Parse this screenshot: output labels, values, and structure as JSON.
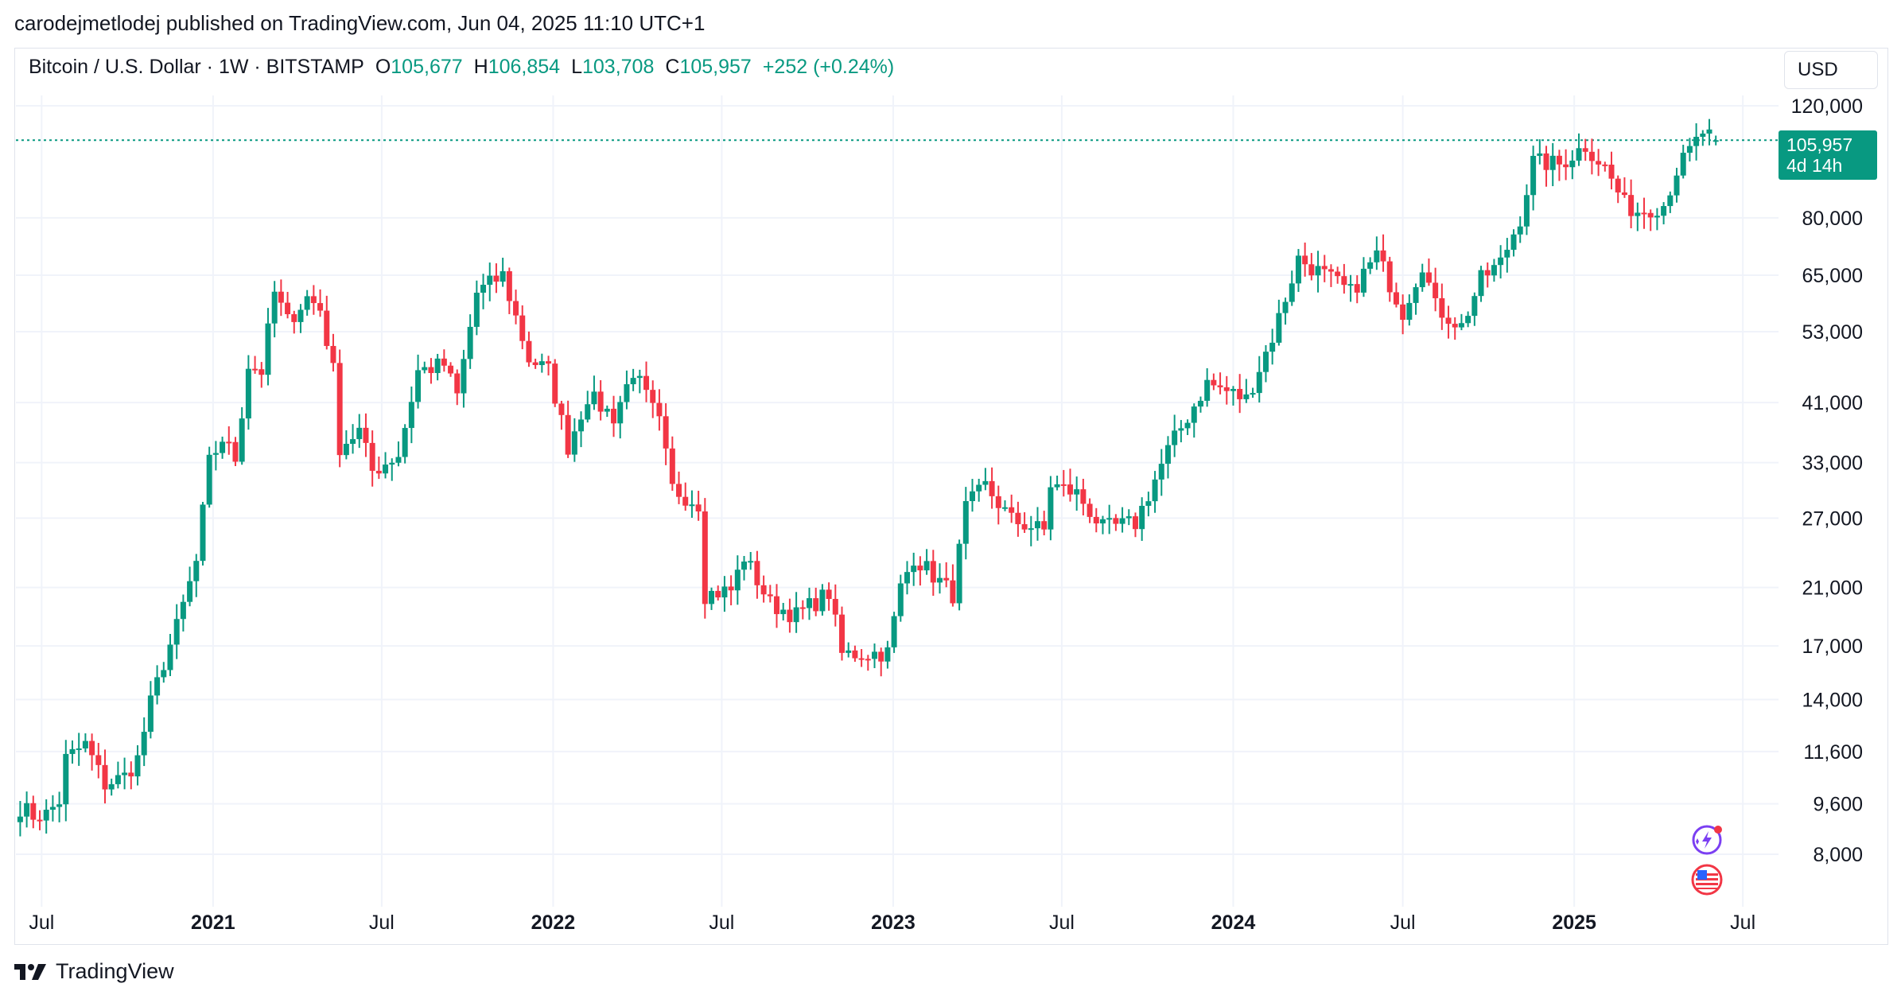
{
  "header": {
    "publish_line": "carodejmetlodej published on TradingView.com, Jun 04, 2025 11:10 UTC+1"
  },
  "legend": {
    "symbol": "Bitcoin / U.S. Dollar · 1W · BITSTAMP",
    "open_label": "O",
    "open": "105,677",
    "high_label": "H",
    "high": "106,854",
    "low_label": "L",
    "low": "103,708",
    "close_label": "C",
    "close": "105,957",
    "change": "+252 (+0.24%)"
  },
  "currency": "USD",
  "price_badge": {
    "price": "105,957",
    "countdown": "4d 14h"
  },
  "brand": {
    "name": "TradingView"
  },
  "colors": {
    "up": "#089981",
    "down": "#f23645",
    "grid": "#f0f3fa",
    "text": "#131722"
  },
  "icons": [
    "tradingview-logo-icon",
    "ai-spark-icon",
    "us-flag-icon"
  ],
  "chart_data": {
    "type": "candlestick",
    "symbol": "BTCUSD",
    "interval": "1W",
    "scale": "log",
    "grid": true,
    "last_price": 105957,
    "y_ticks": [
      "120,000",
      "80,000",
      "65,000",
      "53,000",
      "41,000",
      "33,000",
      "27,000",
      "21,000",
      "17,000",
      "14,000",
      "11,600",
      "9,600",
      "8,000"
    ],
    "y_tick_values": [
      120000,
      80000,
      65000,
      53000,
      41000,
      33000,
      27000,
      21000,
      17000,
      14000,
      11600,
      9600,
      8000
    ],
    "x_ticks": [
      {
        "label": "Jul",
        "bold": false
      },
      {
        "label": "2021",
        "bold": true
      },
      {
        "label": "Jul",
        "bold": false
      },
      {
        "label": "2022",
        "bold": true
      },
      {
        "label": "Jul",
        "bold": false
      },
      {
        "label": "2023",
        "bold": true
      },
      {
        "label": "Jul",
        "bold": false
      },
      {
        "label": "2024",
        "bold": true
      },
      {
        "label": "Jul",
        "bold": false
      },
      {
        "label": "2025",
        "bold": true
      },
      {
        "label": "Jul",
        "bold": false
      }
    ],
    "x_range": [
      "2020-06-08",
      "2025-07-07"
    ],
    "close_anchors": [
      [
        "2020-06-08",
        9500
      ],
      [
        "2020-06-22",
        9200
      ],
      [
        "2020-07-06",
        9250
      ],
      [
        "2020-07-20",
        9700
      ],
      [
        "2020-07-27",
        11300
      ],
      [
        "2020-08-17",
        11900
      ],
      [
        "2020-09-07",
        10300
      ],
      [
        "2020-09-28",
        10600
      ],
      [
        "2020-10-12",
        11300
      ],
      [
        "2020-10-26",
        13800
      ],
      [
        "2020-11-09",
        16000
      ],
      [
        "2020-11-23",
        18200
      ],
      [
        "2020-12-14",
        23000
      ],
      [
        "2020-12-28",
        33000
      ],
      [
        "2021-01-11",
        36000
      ],
      [
        "2021-01-25",
        33500
      ],
      [
        "2021-02-08",
        47000
      ],
      [
        "2021-02-22",
        46000
      ],
      [
        "2021-03-08",
        61000
      ],
      [
        "2021-03-22",
        55000
      ],
      [
        "2021-04-12",
        60000
      ],
      [
        "2021-04-26",
        57500
      ],
      [
        "2021-05-10",
        46000
      ],
      [
        "2021-05-17",
        35000
      ],
      [
        "2021-06-07",
        37000
      ],
      [
        "2021-06-21",
        32000
      ],
      [
        "2021-07-19",
        34000
      ],
      [
        "2021-08-09",
        46000
      ],
      [
        "2021-09-06",
        47000
      ],
      [
        "2021-09-20",
        42000
      ],
      [
        "2021-10-11",
        61000
      ],
      [
        "2021-11-08",
        65000
      ],
      [
        "2021-12-06",
        48000
      ],
      [
        "2021-12-27",
        46000
      ],
      [
        "2022-01-17",
        35000
      ],
      [
        "2022-02-07",
        42000
      ],
      [
        "2022-03-07",
        39000
      ],
      [
        "2022-03-28",
        46000
      ],
      [
        "2022-04-25",
        38000
      ],
      [
        "2022-05-09",
        30000
      ],
      [
        "2022-06-06",
        28500
      ],
      [
        "2022-06-13",
        20500
      ],
      [
        "2022-07-11",
        20800
      ],
      [
        "2022-07-25",
        23500
      ],
      [
        "2022-08-22",
        19800
      ],
      [
        "2022-09-19",
        19000
      ],
      [
        "2022-10-24",
        20600
      ],
      [
        "2022-11-07",
        16500
      ],
      [
        "2022-12-26",
        16600
      ],
      [
        "2023-01-09",
        21000
      ],
      [
        "2023-01-23",
        23500
      ],
      [
        "2023-03-06",
        20500
      ],
      [
        "2023-03-20",
        28000
      ],
      [
        "2023-04-10",
        30300
      ],
      [
        "2023-05-08",
        26800
      ],
      [
        "2023-06-12",
        25800
      ],
      [
        "2023-06-19",
        30500
      ],
      [
        "2023-07-17",
        29500
      ],
      [
        "2023-08-14",
        26000
      ],
      [
        "2023-09-18",
        26500
      ],
      [
        "2023-10-23",
        34500
      ],
      [
        "2023-12-04",
        44000
      ],
      [
        "2024-01-15",
        41500
      ],
      [
        "2024-02-12",
        52000
      ],
      [
        "2024-03-11",
        69000
      ],
      [
        "2024-04-15",
        64000
      ],
      [
        "2024-05-06",
        61000
      ],
      [
        "2024-06-03",
        70000
      ],
      [
        "2024-07-01",
        57000
      ],
      [
        "2024-07-22",
        68000
      ],
      [
        "2024-08-05",
        58000
      ],
      [
        "2024-09-02",
        54000
      ],
      [
        "2024-09-23",
        64000
      ],
      [
        "2024-10-14",
        68000
      ],
      [
        "2024-11-04",
        80000
      ],
      [
        "2024-11-18",
        98000
      ],
      [
        "2024-12-16",
        97000
      ],
      [
        "2025-01-13",
        104000
      ],
      [
        "2025-02-03",
        96000
      ],
      [
        "2025-02-24",
        84000
      ],
      [
        "2025-03-10",
        82000
      ],
      [
        "2025-04-07",
        84000
      ],
      [
        "2025-04-21",
        95000
      ],
      [
        "2025-05-19",
        109000
      ],
      [
        "2025-06-02",
        105957
      ]
    ]
  }
}
